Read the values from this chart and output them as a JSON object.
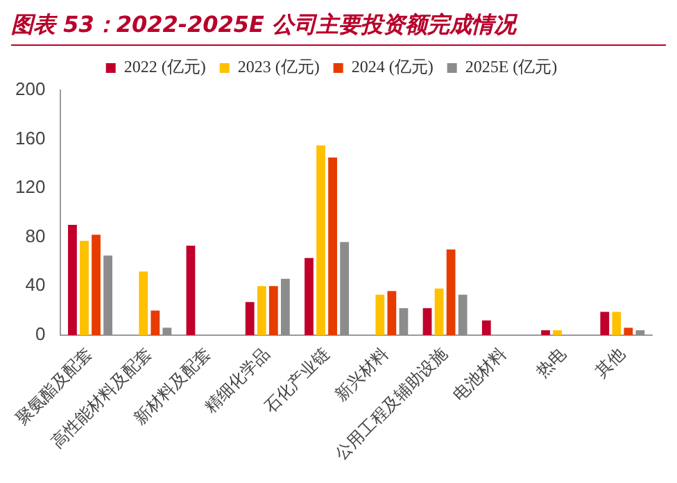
{
  "chart_data": {
    "type": "bar",
    "title": "图表 53：2022-2025E 公司主要投资额完成情况",
    "categories": [
      "聚氨酯及配套",
      "高性能材料及配套",
      "新材料及配套",
      "精细化学品",
      "石化产业链",
      "新兴材料",
      "公用工程及辅助设施",
      "电池材料",
      "热电",
      "其他"
    ],
    "series": [
      {
        "name": "2022 (亿元)",
        "color": "#c0002a",
        "values": [
          90,
          null,
          73,
          27,
          63,
          null,
          22,
          12,
          4,
          19
        ]
      },
      {
        "name": "2023 (亿元)",
        "color": "#ffc000",
        "values": [
          77,
          52,
          null,
          40,
          155,
          33,
          38,
          null,
          4,
          19
        ]
      },
      {
        "name": "2024 (亿元)",
        "color": "#e63c00",
        "values": [
          82,
          20,
          null,
          40,
          145,
          36,
          70,
          null,
          null,
          6
        ]
      },
      {
        "name": "2025E (亿元)",
        "color": "#8c8c8c",
        "values": [
          65,
          6,
          null,
          46,
          76,
          22,
          33,
          null,
          null,
          4
        ]
      }
    ],
    "ylim": [
      0,
      200
    ],
    "yticks": [
      0,
      40,
      80,
      120,
      160,
      200
    ],
    "grid": false,
    "legend": "top"
  }
}
